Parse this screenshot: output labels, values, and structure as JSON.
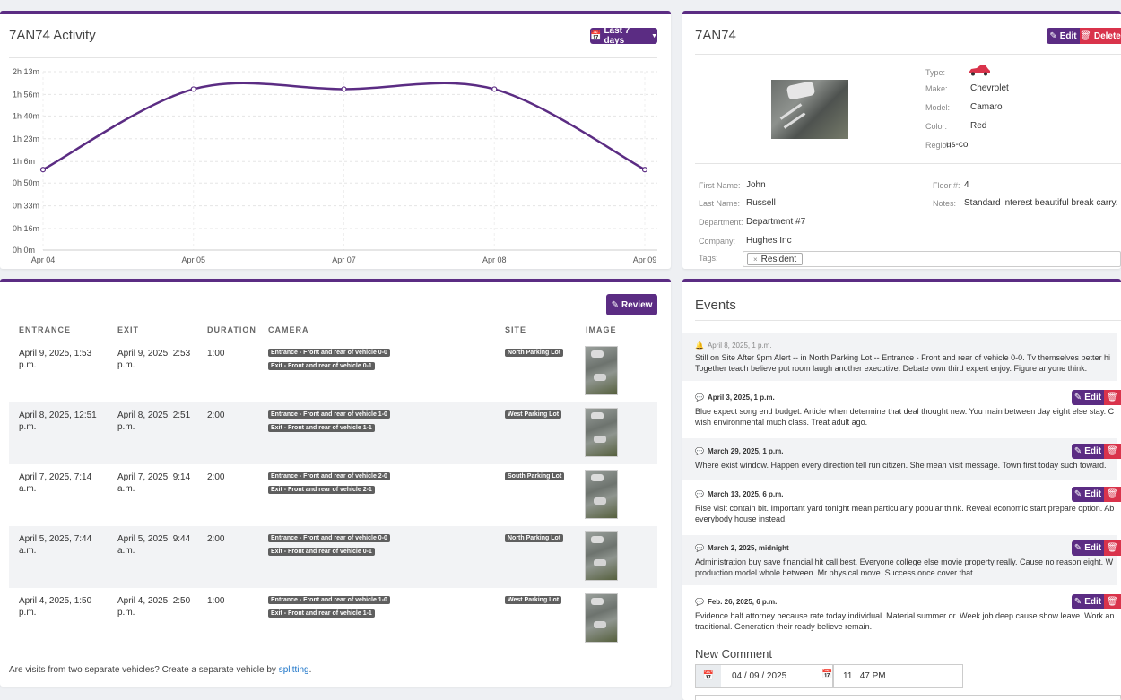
{
  "activity": {
    "title": "7AN74 Activity",
    "range_button": "Last 7 days",
    "colors": {
      "line": "#5b2c83",
      "accent": "#5b2c83"
    }
  },
  "chart_data": {
    "type": "line",
    "title": "",
    "categories": [
      "Apr 04",
      "Apr 05",
      "Apr 07",
      "Apr 08",
      "Apr 09"
    ],
    "y_ticks": [
      "2h 13m",
      "1h 56m",
      "1h 40m",
      "1h 23m",
      "1h 6m",
      "0h 50m",
      "0h 33m",
      "0h 16m",
      "0h 0m"
    ],
    "y_tick_minutes": [
      133,
      116,
      100,
      83,
      66,
      50,
      33,
      16,
      0
    ],
    "ylim": [
      0,
      133
    ],
    "series": [
      {
        "values": [
          60,
          120,
          120,
          120,
          60
        ]
      }
    ],
    "grid": true,
    "smooth": true
  },
  "vehicle": {
    "title": "7AN74",
    "edit_label": "Edit",
    "delete_label": "Delete",
    "type_label": "Type:",
    "make_label": "Make:",
    "make": "Chevrolet",
    "model_label": "Model:",
    "model": "Camaro",
    "color_label": "Color:",
    "color": "Red",
    "region_label": "Region:",
    "region": "us-co",
    "car_icon_color": "#d9334b",
    "first_name_label": "First Name:",
    "first_name": "John",
    "last_name_label": "Last Name:",
    "last_name": "Russell",
    "department_label": "Department:",
    "department": "Department #7",
    "company_label": "Company:",
    "company": "Hughes Inc",
    "tags_label": "Tags:",
    "tag": "Resident",
    "floor_label": "Floor #:",
    "floor": "4",
    "notes_label": "Notes:",
    "notes": "Standard interest beautiful break carry."
  },
  "visits": {
    "review_label": "Review",
    "headers": {
      "entrance": "ENTRANCE",
      "exit": "EXIT",
      "duration": "DURATION",
      "camera": "CAMERA",
      "site": "SITE",
      "image": "IMAGE"
    },
    "rows": [
      {
        "entrance": [
          "April 9, 2025, 1:53",
          "p.m."
        ],
        "exit": [
          "April 9, 2025, 2:53",
          "p.m."
        ],
        "duration": "1:00",
        "cam_in": "Entrance - Front and rear of vehicle 0-0",
        "cam_out": "Exit - Front and rear of vehicle 0-1",
        "site": "North Parking Lot"
      },
      {
        "entrance": [
          "April 8, 2025, 12:51",
          "p.m."
        ],
        "exit": [
          "April 8, 2025, 2:51",
          "p.m."
        ],
        "duration": "2:00",
        "cam_in": "Entrance - Front and rear of vehicle 1-0",
        "cam_out": "Exit - Front and rear of vehicle 1-1",
        "site": "West Parking Lot"
      },
      {
        "entrance": [
          "April 7, 2025, 7:14",
          "a.m."
        ],
        "exit": [
          "April 7, 2025, 9:14",
          "a.m."
        ],
        "duration": "2:00",
        "cam_in": "Entrance - Front and rear of vehicle 2-0",
        "cam_out": "Exit - Front and rear of vehicle 2-1",
        "site": "South Parking Lot"
      },
      {
        "entrance": [
          "April 5, 2025, 7:44",
          "a.m."
        ],
        "exit": [
          "April 5, 2025, 9:44",
          "a.m."
        ],
        "duration": "2:00",
        "cam_in": "Entrance - Front and rear of vehicle 0-0",
        "cam_out": "Exit - Front and rear of vehicle 0-1",
        "site": "North Parking Lot"
      },
      {
        "entrance": [
          "April 4, 2025, 1:50",
          "p.m."
        ],
        "exit": [
          "April 4, 2025, 2:50",
          "p.m."
        ],
        "duration": "1:00",
        "cam_in": "Entrance - Front and rear of vehicle 1-0",
        "cam_out": "Exit - Front and rear of vehicle 1-1",
        "site": "West Parking Lot"
      }
    ],
    "split_text": "Are visits from two separate vehicles? Create a separate vehicle by",
    "split_link": "splitting",
    "split_end": "."
  },
  "events": {
    "title": "Events",
    "edit_label": "Edit",
    "delete_label": "D",
    "items": [
      {
        "date": "April 8, 2025, 1 p.m.",
        "icon": "bell-icon",
        "lines": [
          "Still on Site After 9pm Alert -- in North Parking Lot -- Entrance - Front and rear of vehicle 0-0. Tv themselves better hi",
          "Together teach believe put room laugh another executive. Debate own third expert enjoy. Figure anyone think."
        ]
      },
      {
        "date": "April 3, 2025, 1 p.m.",
        "icon": "comment-icon",
        "lines": [
          "Blue expect song end budget. Article when determine that deal thought new. You main between day eight else stay. C",
          "wish environmental much class. Treat adult ago."
        ]
      },
      {
        "date": "March 29, 2025, 1 p.m.",
        "icon": "comment-icon",
        "lines": [
          "Where exist window. Happen every direction tell run citizen. She mean visit message. Town first today such toward."
        ]
      },
      {
        "date": "March 13, 2025, 6 p.m.",
        "icon": "comment-icon",
        "lines": [
          "Rise visit contain bit. Important yard tonight mean particularly popular think. Reveal economic start prepare option. Ab",
          "everybody house instead."
        ]
      },
      {
        "date": "March 2, 2025, midnight",
        "icon": "comment-icon",
        "lines": [
          "Administration buy save financial hit call best. Everyone college else movie property really. Cause no reason eight. W",
          "production model whole between. Mr physical move. Success once cover that."
        ]
      },
      {
        "date": "Feb. 26, 2025, 6 p.m.",
        "icon": "comment-icon",
        "lines": [
          "Evidence half attorney because rate today individual. Material summer or. Week job deep cause show leave. Work an",
          "traditional. Generation their ready believe remain."
        ]
      }
    ],
    "new_comment_label": "New Comment",
    "date_value": "04 / 09 / 2025",
    "time_value": "11 : 47   PM"
  }
}
